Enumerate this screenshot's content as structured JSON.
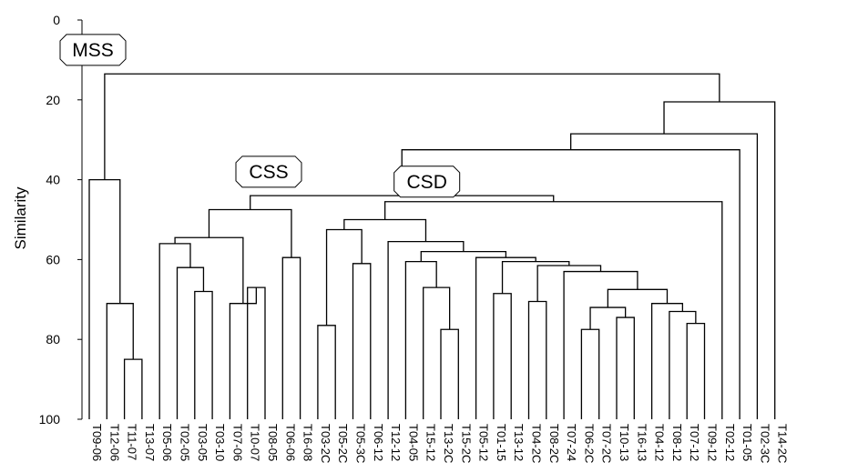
{
  "chart_data": {
    "type": "dendrogram",
    "ylabel": "Similarity",
    "ylim": [
      0,
      100
    ],
    "y_inverted": true,
    "yticks": [
      0,
      20,
      40,
      60,
      80,
      100
    ],
    "grid": false,
    "leaves": [
      "T09-06",
      "T12-06",
      "T11-07",
      "T13-07",
      "T05-06",
      "T02-05",
      "T03-05",
      "T03-10",
      "T07-06",
      "T10-07",
      "T08-05",
      "T06-06",
      "T16-08",
      "T03-2C",
      "T05-2C",
      "T05-3C",
      "T06-12",
      "T12-12",
      "T04-05",
      "T15-12",
      "T13-2C",
      "T15-2C",
      "T05-12",
      "T01-15",
      "T13-12",
      "T04-2C",
      "T08-2C",
      "T07-24",
      "T06-2C",
      "T07-2C",
      "T10-13",
      "T16-13",
      "T04-12",
      "T08-12",
      "T07-12",
      "T09-12",
      "T02-12",
      "T01-05",
      "T02-3C",
      "T14-2C"
    ],
    "merges": [
      {
        "id": "m1",
        "a": "T13-07",
        "b": "T11-07",
        "similarity": 85
      },
      {
        "id": "m2",
        "a": "m1",
        "b": "T12-06",
        "similarity": 71
      },
      {
        "id": "m3",
        "a": "m2",
        "b": "T09-06",
        "similarity": 40
      },
      {
        "id": "m4",
        "a": "T03-10",
        "b": "T03-05",
        "similarity": 68
      },
      {
        "id": "m5",
        "a": "m4",
        "b": "T02-05",
        "similarity": 62
      },
      {
        "id": "m6",
        "a": "m5",
        "b": "T05-06",
        "similarity": 56
      },
      {
        "id": "m7",
        "a": "T08-05",
        "b": "T10-07",
        "similarity": 67
      },
      {
        "id": "m8",
        "a": "T07-06",
        "b": "m7",
        "similarity": 71
      },
      {
        "id": "m9",
        "a": "m6",
        "b": "m8",
        "similarity": 54.5
      },
      {
        "id": "m10",
        "a": "T16-08",
        "b": "T06-06",
        "similarity": 59.5
      },
      {
        "id": "m11",
        "a": "m9",
        "b": "m10",
        "similarity": 47.5
      },
      {
        "id": "m12",
        "a": "T03-2C",
        "b": "T05-2C",
        "similarity": 76.5
      },
      {
        "id": "m13",
        "a": "T05-3C",
        "b": "T06-12",
        "similarity": 61
      },
      {
        "id": "m14",
        "a": "m12",
        "b": "m13",
        "similarity": 52.5
      },
      {
        "id": "m15",
        "a": "T13-2C",
        "b": "T15-2C",
        "similarity": 77.5
      },
      {
        "id": "m16",
        "a": "T15-12",
        "b": "m15",
        "similarity": 67
      },
      {
        "id": "m17",
        "a": "T04-05",
        "b": "m16",
        "similarity": 60.5
      },
      {
        "id": "m18",
        "a": "T01-15",
        "b": "T13-12",
        "similarity": 68.5
      },
      {
        "id": "m19",
        "a": "T04-2C",
        "b": "T08-2C",
        "similarity": 70.5
      },
      {
        "id": "m20",
        "a": "T06-2C",
        "b": "T07-2C",
        "similarity": 77.5
      },
      {
        "id": "m21",
        "a": "T10-13",
        "b": "T16-13",
        "similarity": 74.5
      },
      {
        "id": "m22",
        "a": "m20",
        "b": "m21",
        "similarity": 72
      },
      {
        "id": "m23",
        "a": "T07-12",
        "b": "T09-12",
        "similarity": 76
      },
      {
        "id": "m24",
        "a": "T08-12",
        "b": "m23",
        "similarity": 73
      },
      {
        "id": "m25",
        "a": "T04-12",
        "b": "m24",
        "similarity": 71
      },
      {
        "id": "m26",
        "a": "m22",
        "b": "m25",
        "similarity": 67.5
      },
      {
        "id": "m27",
        "a": "T07-24",
        "b": "m26",
        "similarity": 63
      },
      {
        "id": "m28",
        "a": "m19",
        "b": "m27",
        "similarity": 61.5
      },
      {
        "id": "m29",
        "a": "m18",
        "b": "m28",
        "similarity": 60.5
      },
      {
        "id": "m30",
        "a": "T05-12",
        "b": "m29",
        "similarity": 59.5
      },
      {
        "id": "m31",
        "a": "m17",
        "b": "m30",
        "similarity": 58
      },
      {
        "id": "m32",
        "a": "T12-12",
        "b": "m31",
        "similarity": 55.5
      },
      {
        "id": "m33",
        "a": "m14",
        "b": "m32",
        "similarity": 50
      },
      {
        "id": "m34",
        "a": "m33",
        "b": "T02-12",
        "similarity": 45.5
      },
      {
        "id": "m35",
        "a": "m11",
        "b": "m34",
        "similarity": 44
      },
      {
        "id": "m36",
        "a": "m35",
        "b": "T01-05",
        "similarity": 32.5
      },
      {
        "id": "m37",
        "a": "m36",
        "b": "T02-3C",
        "similarity": 28.5
      },
      {
        "id": "m38",
        "a": "m37",
        "b": "T14-2C",
        "similarity": 20.5
      },
      {
        "id": "m39",
        "a": "m3",
        "b": "m38",
        "similarity": 13.5
      }
    ],
    "annotations": [
      {
        "text": "MSS",
        "similarity": 7.5,
        "leaf": "T09-06"
      },
      {
        "text": "CSS",
        "similarity": 38,
        "leaf": "T08-05"
      },
      {
        "text": "CSD",
        "similarity": 40.5,
        "leaf": "T15-12"
      }
    ]
  }
}
